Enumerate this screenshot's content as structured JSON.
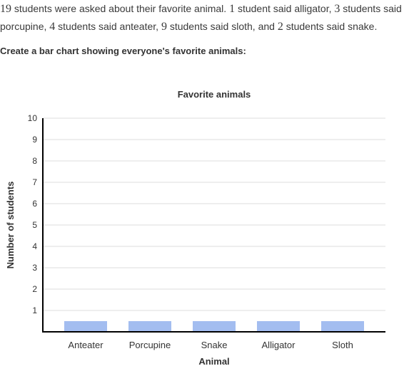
{
  "problem": {
    "seg1_num": "19",
    "seg2": " students were asked about their favorite animal. ",
    "seg3_num": "1",
    "seg4": " student said alligator, ",
    "seg5_num": "3",
    "seg6": " students said porcupine, ",
    "seg7_num": "4",
    "seg8": " students said anteater, ",
    "seg9_num": "9",
    "seg10": " students said sloth, and ",
    "seg11_num": "2",
    "seg12": " students said snake."
  },
  "instruction": "Create a bar chart showing everyone's favorite animals:",
  "colors": {
    "bar": "#a3bdf0",
    "axis": "#000000",
    "grid": "#dddddd"
  },
  "chart_data": {
    "type": "bar",
    "title": "Favorite animals",
    "xlabel": "Animal",
    "ylabel": "Number of students",
    "categories": [
      "Anteater",
      "Porcupine",
      "Snake",
      "Alligator",
      "Sloth"
    ],
    "values": [
      0.5,
      0.5,
      0.5,
      0.5,
      0.5
    ],
    "ylim": [
      0,
      10
    ],
    "yticks": [
      1,
      2,
      3,
      4,
      5,
      6,
      7,
      8,
      9,
      10
    ],
    "grid": true
  }
}
